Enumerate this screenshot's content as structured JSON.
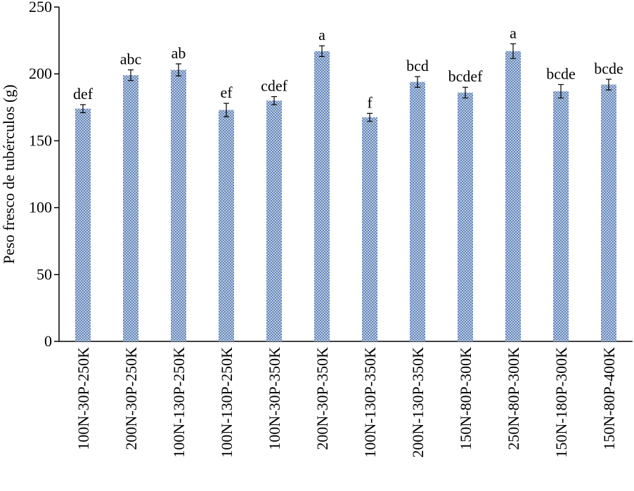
{
  "chart_data": {
    "type": "bar",
    "y_label": "Peso fresco de tubérculos (g)",
    "categories": [
      "100N-30P-250K",
      "200N-30P-250K",
      "100N-130P-250K",
      "100N-130P-250K",
      "100N-30P-350K",
      "200N-30P-350K",
      "100N-130P-350K",
      "200N-130P-350K",
      "150N-80P-300K",
      "250N-80P-300K",
      "150N-180P-300K",
      "150N-80P-400K"
    ],
    "values": [
      174,
      199,
      203,
      173,
      180,
      217,
      167.5,
      194,
      186,
      217,
      187,
      192
    ],
    "errors": [
      3,
      4,
      4.5,
      5,
      3,
      4,
      3,
      4,
      4,
      5.5,
      5,
      4
    ],
    "letters": [
      "def",
      "abc",
      "ab",
      "ef",
      "cdef",
      "a",
      "f",
      "bcd",
      "bcdef",
      "a",
      "bcde",
      "bcde"
    ],
    "color": "#5b7fb5",
    "ylim": [
      0,
      250
    ],
    "yticks": [
      0,
      50,
      100,
      150,
      200,
      250
    ],
    "grid": false
  }
}
